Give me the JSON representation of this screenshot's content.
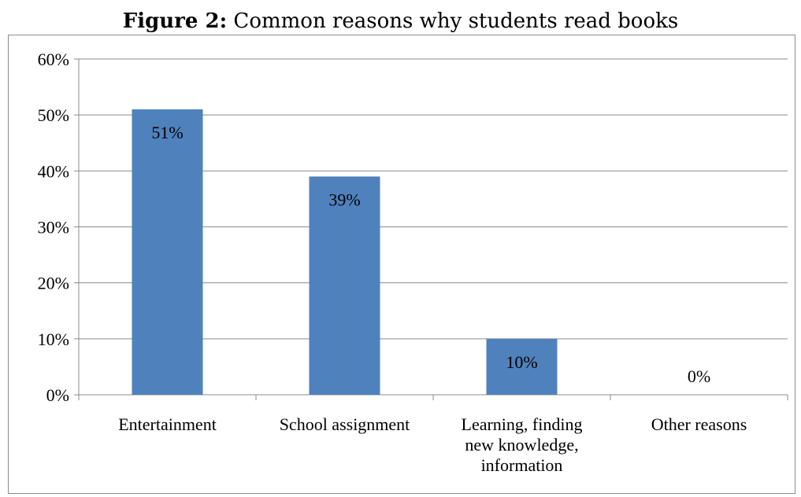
{
  "title": {
    "bold": "Figure 2:",
    "rest": " Common reasons why students read books"
  },
  "chart_data": {
    "type": "bar",
    "categories": [
      [
        "Entertainment"
      ],
      [
        "School assignment"
      ],
      [
        "Learning, finding",
        "new knowledge,",
        "information"
      ],
      [
        "Other reasons"
      ]
    ],
    "values": [
      51,
      39,
      10,
      0
    ],
    "data_labels": [
      "51%",
      "39%",
      "10%",
      "0%"
    ],
    "yticks": [
      "0%",
      "10%",
      "20%",
      "30%",
      "40%",
      "50%",
      "60%"
    ],
    "ylim": [
      0,
      60
    ],
    "grid": true,
    "legend": "none",
    "bar_color": "#4f81bd",
    "grid_color": "#8c8c8c"
  }
}
